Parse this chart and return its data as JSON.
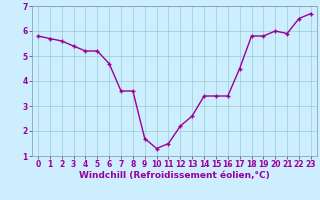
{
  "x": [
    0,
    1,
    2,
    3,
    4,
    5,
    6,
    7,
    8,
    9,
    10,
    11,
    12,
    13,
    14,
    15,
    16,
    17,
    18,
    19,
    20,
    21,
    22,
    23
  ],
  "y": [
    5.8,
    5.7,
    5.6,
    5.4,
    5.2,
    5.2,
    4.7,
    3.6,
    3.6,
    1.7,
    1.3,
    1.5,
    2.2,
    2.6,
    3.4,
    3.4,
    3.4,
    4.5,
    5.8,
    5.8,
    6.0,
    5.9,
    6.5,
    6.7
  ],
  "line_color": "#990099",
  "marker": "+",
  "marker_size": 3.5,
  "marker_linewidth": 1.0,
  "bg_color": "#cceeff",
  "grid_color": "#99cccc",
  "xlabel": "Windchill (Refroidissement éolien,°C)",
  "xlabel_color": "#990099",
  "ylim": [
    1,
    7
  ],
  "xlim": [
    -0.5,
    23.5
  ],
  "yticks": [
    1,
    2,
    3,
    4,
    5,
    6,
    7
  ],
  "xticks": [
    0,
    1,
    2,
    3,
    4,
    5,
    6,
    7,
    8,
    9,
    10,
    11,
    12,
    13,
    14,
    15,
    16,
    17,
    18,
    19,
    20,
    21,
    22,
    23
  ],
  "tick_color": "#990099",
  "tick_labelsize": 5.5,
  "xlabel_fontsize": 6.5,
  "linewidth": 1.0,
  "spine_color": "#7799aa"
}
